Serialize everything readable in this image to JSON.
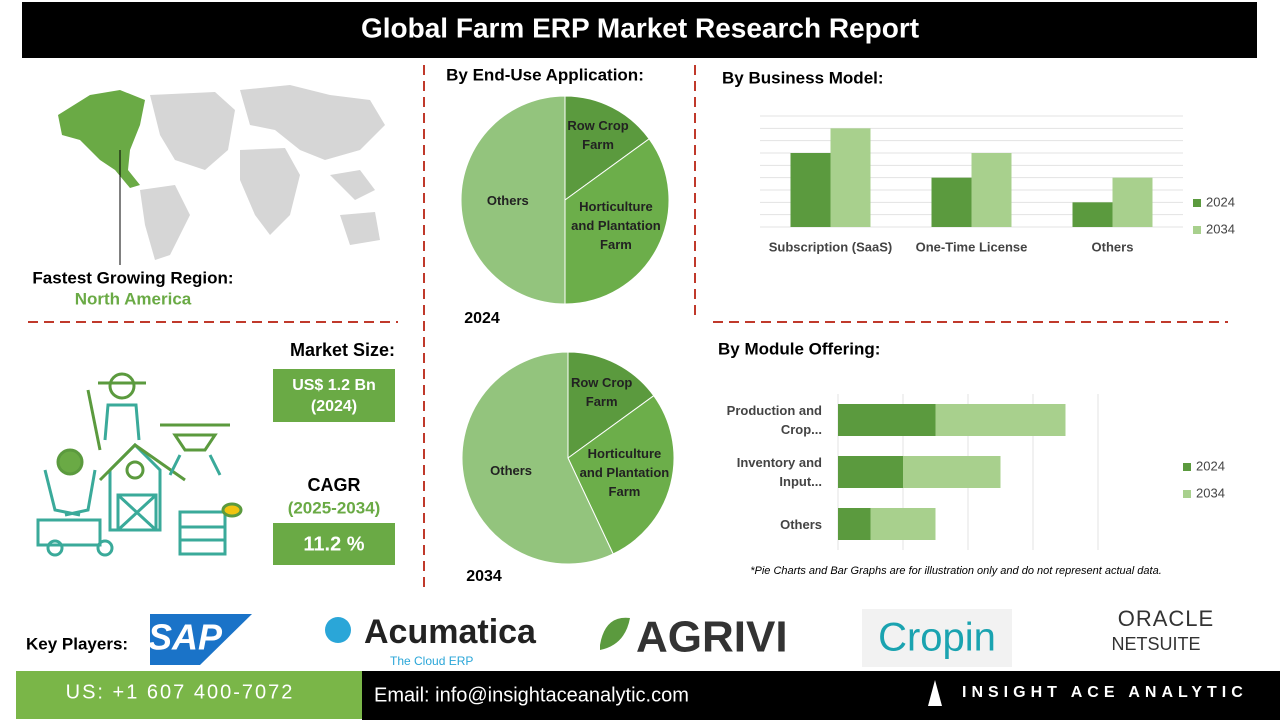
{
  "header": {
    "title": "Global Farm ERP Market Research Report"
  },
  "region": {
    "label": "Fastest Growing Region:",
    "value": "North America"
  },
  "market_size": {
    "label": "Market Size:",
    "value": "US$ 1.2 Bn (2024)"
  },
  "cagr": {
    "label": "CAGR",
    "period": "(2025-2034)",
    "value": "11.2 %"
  },
  "chart_data": [
    {
      "type": "pie",
      "title": "By End-Use Application:",
      "year": "2024",
      "categories": [
        "Row Crop Farm",
        "Horticulture and Plantation Farm",
        "Others"
      ],
      "values": [
        15,
        35,
        50
      ],
      "colors": [
        "#5b9a3e",
        "#6cae4a",
        "#93c47d"
      ]
    },
    {
      "type": "pie",
      "year": "2034",
      "categories": [
        "Row Crop Farm",
        "Horticulture and Plantation Farm",
        "Others"
      ],
      "values": [
        15,
        28,
        57
      ],
      "colors": [
        "#5b9a3e",
        "#6cae4a",
        "#93c47d"
      ]
    },
    {
      "type": "bar",
      "title": "By Business Model:",
      "categories": [
        "Subscription (SaaS)",
        "One-Time License",
        "Others"
      ],
      "series": [
        {
          "name": "2024",
          "color": "#5b9a3e",
          "values": [
            3,
            2,
            1
          ]
        },
        {
          "name": "2034",
          "color": "#a8d08d",
          "values": [
            4,
            3,
            2
          ]
        }
      ],
      "ylim": [
        0,
        4.5
      ],
      "grid": true
    },
    {
      "type": "stacked_bar_h",
      "title": "By Module Offering:",
      "categories": [
        "Production and Crop...",
        "Inventory and Input...",
        "Others"
      ],
      "series": [
        {
          "name": "2024",
          "color": "#5b9a3e",
          "values": [
            1.5,
            1,
            0.5
          ]
        },
        {
          "name": "2034",
          "color": "#a8d08d",
          "values": [
            2,
            1.5,
            1
          ]
        }
      ],
      "xlim": [
        0,
        4
      ],
      "grid": true
    }
  ],
  "note": "*Pie Charts and Bar Graphs are for illustration only and do not represent actual data.",
  "key_players": {
    "label": "Key Players:",
    "logos": [
      "SAP",
      "Acumatica",
      "The Cloud ERP",
      "AGRIVI",
      "Cropin",
      "ORACLE",
      "NETSUITE"
    ]
  },
  "footer": {
    "phone": "US: +1 607 400-7072",
    "email": "Email: info@insightaceanalytic.com",
    "brand": "INSIGHT ACE ANALYTIC"
  }
}
